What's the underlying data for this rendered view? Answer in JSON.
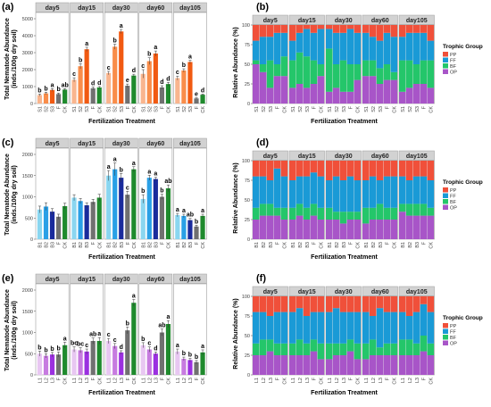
{
  "figure": {
    "panel_letters": [
      "(a)",
      "(b)",
      "(c)",
      "(d)",
      "(e)",
      "(f)"
    ],
    "facets": [
      "day5",
      "day15",
      "day30",
      "day60",
      "day105"
    ],
    "left_ylabel": "Total Nematode Abundance\n(inds./100g dry soil)",
    "right_ylabel": "Relative Abundance (%)",
    "xlabel": "Fertilization Treatment",
    "legend_title": "Trophic Group",
    "legend_items": [
      {
        "label": "PP",
        "color": "#f0503a"
      },
      {
        "label": "FF",
        "color": "#1a9ad6"
      },
      {
        "label": "BF",
        "color": "#24c66a"
      },
      {
        "label": "OP",
        "color": "#a855c8"
      }
    ]
  },
  "chart_data": [
    {
      "panel": "(a)",
      "type": "bar",
      "title": "",
      "xlabel": "Fertilization Treatment",
      "ylabel": "Total Nematode Abundance (inds./100g dry soil)",
      "facets": [
        "day5",
        "day15",
        "day30",
        "day60",
        "day105"
      ],
      "categories": [
        "S1",
        "S2",
        "S3",
        "F",
        "CK"
      ],
      "colors": [
        "#f9b58e",
        "#f98d4a",
        "#f15a12",
        "#707070",
        "#1f8a2d"
      ],
      "ylim": [
        0,
        5000
      ],
      "yticks": [
        0,
        1000,
        2000,
        3000,
        4000,
        5000
      ],
      "facet_values": [
        [
          500,
          600,
          800,
          560,
          820
        ],
        [
          1400,
          2200,
          3200,
          900,
          950
        ],
        [
          1800,
          3350,
          4250,
          1050,
          1650
        ],
        [
          1750,
          2500,
          2950,
          950,
          1150
        ],
        [
          1500,
          1950,
          2450,
          300,
          520
        ]
      ],
      "errors": [
        [
          60,
          70,
          80,
          60,
          60
        ],
        [
          120,
          150,
          120,
          80,
          60
        ],
        [
          100,
          150,
          120,
          100,
          80
        ],
        [
          250,
          200,
          150,
          100,
          100
        ],
        [
          120,
          100,
          100,
          40,
          40
        ]
      ],
      "letters": [
        [
          "b",
          "b",
          "a",
          "b",
          "ab"
        ],
        [
          "c",
          "b",
          "a",
          "d",
          "d"
        ],
        [
          "c",
          "b",
          "a",
          "e",
          "d"
        ],
        [
          "c",
          "b",
          "a",
          "d",
          "d"
        ],
        [
          "c",
          "b",
          "a",
          "e",
          "d"
        ]
      ]
    },
    {
      "panel": "(b)",
      "type": "bar",
      "stacked": true,
      "title": "",
      "xlabel": "Fertilization Treatment",
      "ylabel": "Relative Abundance (%)",
      "facets": [
        "day5",
        "day15",
        "day30",
        "day60",
        "day105"
      ],
      "categories": [
        "S1",
        "S2",
        "S3",
        "F",
        "CK"
      ],
      "ylim": [
        0,
        100
      ],
      "yticks": [
        0,
        25,
        50,
        75,
        100
      ],
      "legend": {
        "title": "Trophic Group",
        "entries": [
          "PP",
          "FF",
          "BF",
          "OP"
        ],
        "placement": "right"
      },
      "facet_values": [
        [
          [
            20,
            25,
            5,
            50
          ],
          [
            15,
            35,
            10,
            40
          ],
          [
            15,
            30,
            35,
            20
          ],
          [
            10,
            40,
            15,
            35
          ],
          [
            10,
            30,
            25,
            35
          ]
        ],
        [
          [
            20,
            25,
            35,
            20
          ],
          [
            10,
            25,
            40,
            25
          ],
          [
            5,
            35,
            40,
            20
          ],
          [
            10,
            35,
            30,
            25
          ],
          [
            5,
            45,
            15,
            35
          ]
        ],
        [
          [
            5,
            25,
            55,
            15
          ],
          [
            10,
            40,
            30,
            20
          ],
          [
            10,
            35,
            40,
            15
          ],
          [
            5,
            45,
            35,
            15
          ],
          [
            10,
            40,
            20,
            30
          ]
        ],
        [
          [
            10,
            35,
            20,
            35
          ],
          [
            15,
            30,
            20,
            35
          ],
          [
            20,
            35,
            20,
            25
          ],
          [
            10,
            40,
            20,
            30
          ],
          [
            15,
            45,
            10,
            30
          ]
        ],
        [
          [
            15,
            30,
            40,
            15
          ],
          [
            10,
            35,
            35,
            20
          ],
          [
            10,
            40,
            25,
            25
          ],
          [
            10,
            35,
            30,
            25
          ],
          [
            20,
            25,
            35,
            20
          ]
        ]
      ]
    },
    {
      "panel": "(c)",
      "type": "bar",
      "title": "",
      "xlabel": "Fertilization Treatment",
      "ylabel": "Total Nematode Abundance (inds./100g dry soil)",
      "facets": [
        "day5",
        "day15",
        "day30",
        "day60",
        "day105"
      ],
      "categories": [
        "B1",
        "B2",
        "B3",
        "F",
        "CK"
      ],
      "colors": [
        "#8ad6f0",
        "#2aa0e6",
        "#1a2b9c",
        "#707070",
        "#1f8a2d"
      ],
      "ylim": [
        0,
        2000
      ],
      "yticks": [
        0,
        500,
        1000,
        1500,
        2000
      ],
      "facet_values": [
        [
          700,
          770,
          650,
          530,
          780
        ],
        [
          980,
          900,
          800,
          880,
          980
        ],
        [
          1500,
          1650,
          1450,
          1050,
          1650
        ],
        [
          950,
          1450,
          1420,
          1000,
          1200
        ],
        [
          570,
          550,
          450,
          300,
          550
        ]
      ],
      "errors": [
        [
          80,
          90,
          70,
          60,
          70
        ],
        [
          70,
          60,
          60,
          60,
          80
        ],
        [
          120,
          150,
          100,
          80,
          60
        ],
        [
          100,
          60,
          40,
          60,
          80
        ],
        [
          40,
          40,
          40,
          30,
          40
        ]
      ],
      "letters": [
        [
          "",
          "",
          "",
          "",
          ""
        ],
        [
          "",
          "",
          "",
          "",
          ""
        ],
        [
          "a",
          "a",
          "b",
          "c",
          "a"
        ],
        [
          "b",
          "a",
          "a",
          "b",
          "ab"
        ],
        [
          "a",
          "a",
          "ab",
          "b",
          "a"
        ]
      ]
    },
    {
      "panel": "(d)",
      "type": "bar",
      "stacked": true,
      "title": "",
      "xlabel": "Fertilization Treatment",
      "ylabel": "Relative Abundance (%)",
      "facets": [
        "day5",
        "day15",
        "day30",
        "day60",
        "day105"
      ],
      "categories": [
        "B1",
        "B2",
        "B3",
        "F",
        "CK"
      ],
      "ylim": [
        0,
        100
      ],
      "yticks": [
        0,
        25,
        50,
        75,
        100
      ],
      "legend": {
        "title": "Trophic Group",
        "entries": [
          "PP",
          "FF",
          "BF",
          "OP"
        ],
        "placement": "right"
      },
      "facet_values": [
        [
          [
            20,
            40,
            15,
            25
          ],
          [
            20,
            35,
            15,
            30
          ],
          [
            25,
            30,
            15,
            30
          ],
          [
            10,
            50,
            10,
            30
          ],
          [
            20,
            40,
            15,
            25
          ]
        ],
        [
          [
            25,
            35,
            15,
            25
          ],
          [
            20,
            35,
            15,
            30
          ],
          [
            20,
            40,
            15,
            25
          ],
          [
            15,
            40,
            15,
            30
          ],
          [
            20,
            40,
            15,
            25
          ]
        ],
        [
          [
            25,
            35,
            15,
            25
          ],
          [
            20,
            45,
            10,
            25
          ],
          [
            25,
            40,
            15,
            20
          ],
          [
            20,
            45,
            10,
            25
          ],
          [
            25,
            40,
            10,
            25
          ]
        ],
        [
          [
            25,
            35,
            20,
            20
          ],
          [
            20,
            40,
            15,
            25
          ],
          [
            25,
            30,
            20,
            25
          ],
          [
            20,
            40,
            15,
            25
          ],
          [
            20,
            40,
            15,
            25
          ]
        ],
        [
          [
            20,
            35,
            10,
            35
          ],
          [
            25,
            30,
            15,
            30
          ],
          [
            20,
            35,
            15,
            30
          ],
          [
            20,
            35,
            15,
            30
          ],
          [
            25,
            35,
            10,
            30
          ]
        ]
      ]
    },
    {
      "panel": "(e)",
      "type": "bar",
      "title": "",
      "xlabel": "Fertilization Treatment",
      "ylabel": "Total Nematode Abundance (inds./100g dry soil)",
      "facets": [
        "day5",
        "day15",
        "day30",
        "day60",
        "day105"
      ],
      "categories": [
        "L1",
        "L2",
        "L3",
        "F",
        "CK"
      ],
      "colors": [
        "#e8c7f2",
        "#c77be0",
        "#9b30e0",
        "#707070",
        "#1f8a2d"
      ],
      "ylim": [
        0,
        2000
      ],
      "yticks": [
        0,
        500,
        1000,
        1500,
        2000
      ],
      "facet_values": [
        [
          500,
          450,
          480,
          480,
          700
        ],
        [
          600,
          580,
          550,
          800,
          800
        ],
        [
          800,
          680,
          530,
          1050,
          1700
        ],
        [
          700,
          600,
          500,
          1000,
          1200
        ],
        [
          550,
          380,
          350,
          300,
          530
        ]
      ],
      "errors": [
        [
          60,
          50,
          50,
          60,
          70
        ],
        [
          60,
          60,
          60,
          70,
          80
        ],
        [
          60,
          60,
          40,
          80,
          80
        ],
        [
          60,
          60,
          40,
          80,
          80
        ],
        [
          60,
          40,
          40,
          40,
          60
        ]
      ],
      "letters": [
        [
          "b",
          "b",
          "b",
          "b",
          "a"
        ],
        [
          "bc",
          "bc",
          "c",
          "ab",
          "a"
        ],
        [
          "c",
          "c",
          "d",
          "b",
          "a"
        ],
        [
          "b",
          "c",
          "d",
          "ab",
          "a"
        ],
        [
          "a",
          "b",
          "b",
          "b",
          "a"
        ]
      ]
    },
    {
      "panel": "(f)",
      "type": "bar",
      "stacked": true,
      "title": "",
      "xlabel": "Fertilization Treatment",
      "ylabel": "Relative Abundance (%)",
      "facets": [
        "day5",
        "day15",
        "day30",
        "day60",
        "day105"
      ],
      "categories": [
        "L1",
        "L2",
        "L3",
        "F",
        "CK"
      ],
      "ylim": [
        0,
        100
      ],
      "yticks": [
        0,
        25,
        50,
        75,
        100
      ],
      "legend": {
        "title": "Trophic Group",
        "entries": [
          "PP",
          "FF",
          "BF",
          "OP"
        ],
        "placement": "right"
      },
      "facet_values": [
        [
          [
            20,
            40,
            15,
            25
          ],
          [
            20,
            35,
            20,
            25
          ],
          [
            25,
            30,
            15,
            30
          ],
          [
            20,
            40,
            15,
            25
          ],
          [
            20,
            40,
            15,
            25
          ]
        ],
        [
          [
            20,
            40,
            15,
            25
          ],
          [
            15,
            40,
            20,
            25
          ],
          [
            25,
            35,
            15,
            25
          ],
          [
            20,
            35,
            15,
            30
          ],
          [
            20,
            40,
            20,
            20
          ]
        ],
        [
          [
            20,
            40,
            20,
            20
          ],
          [
            15,
            45,
            15,
            25
          ],
          [
            20,
            40,
            15,
            25
          ],
          [
            20,
            35,
            15,
            30
          ],
          [
            20,
            40,
            20,
            20
          ]
        ],
        [
          [
            20,
            40,
            20,
            20
          ],
          [
            25,
            30,
            20,
            25
          ],
          [
            15,
            50,
            10,
            25
          ],
          [
            20,
            40,
            15,
            25
          ],
          [
            20,
            40,
            15,
            25
          ]
        ],
        [
          [
            20,
            35,
            20,
            25
          ],
          [
            25,
            30,
            20,
            25
          ],
          [
            20,
            40,
            15,
            25
          ],
          [
            10,
            40,
            20,
            30
          ],
          [
            20,
            40,
            15,
            25
          ]
        ]
      ]
    }
  ]
}
